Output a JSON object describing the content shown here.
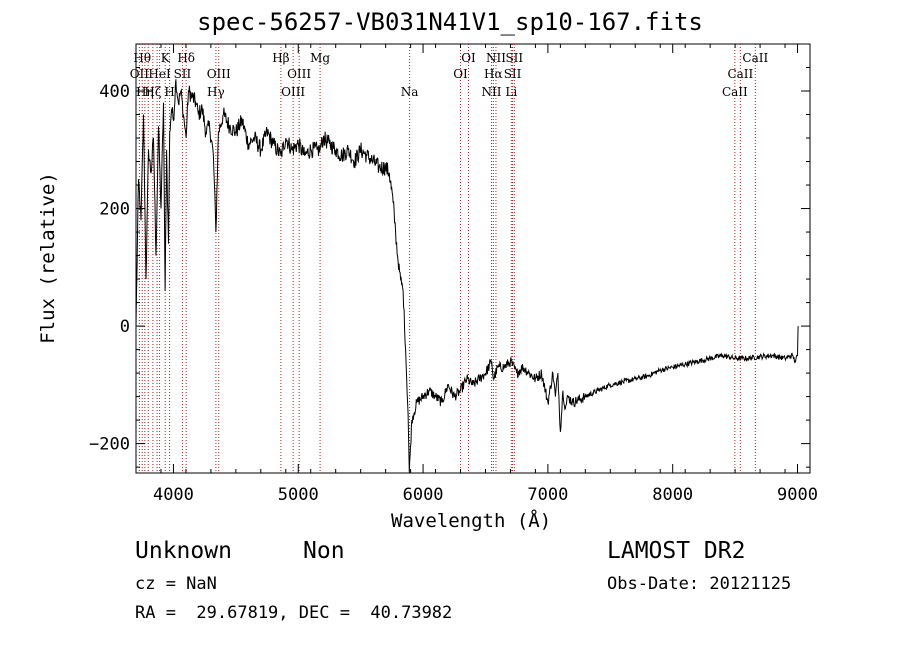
{
  "title": "spec-56257-VB031N41V1_sp10-167.fits",
  "footer": {
    "object_class": "Unknown",
    "subclass": "Non",
    "redshift": "cz = NaN",
    "coords": "RA =  29.67819, DEC =  40.73982",
    "survey": "LAMOST DR2",
    "obs_date": "Obs-Date: 20121125"
  },
  "chart_data": {
    "type": "line",
    "title": "spec-56257-VB031N41V1_sp10-167.fits",
    "xlabel": "Wavelength (Å)",
    "ylabel": "Flux (relative)",
    "xlim": [
      3700,
      9100
    ],
    "ylim": [
      -250,
      480
    ],
    "xticks": [
      4000,
      5000,
      6000,
      7000,
      8000,
      9000
    ],
    "yticks": [
      -200,
      0,
      200,
      400
    ],
    "grid": false,
    "colors": {
      "spectrum": "#000000",
      "line_markers": "#b22222"
    },
    "series": [
      {
        "x": [
          3700,
          3720,
          3740,
          3760,
          3780,
          3800,
          3820,
          3840,
          3860,
          3880,
          3900,
          3920,
          3933,
          3945,
          3960,
          3970,
          3985,
          4000,
          4020,
          4040,
          4060,
          4080,
          4101,
          4120,
          4150,
          4180,
          4200,
          4230,
          4260,
          4290,
          4320,
          4340,
          4360,
          4400,
          4450,
          4500,
          4550,
          4600,
          4650,
          4700,
          4750,
          4800,
          4861,
          4900,
          4950,
          5000,
          5050,
          5100,
          5150,
          5175,
          5200,
          5250,
          5300,
          5350,
          5400,
          5450,
          5500,
          5550,
          5600,
          5650,
          5700,
          5730,
          5760,
          5780,
          5800,
          5820,
          5840,
          5860,
          5880,
          5890,
          5896,
          5910,
          5950,
          6000,
          6050,
          6100,
          6150,
          6200,
          6250,
          6300,
          6350,
          6400,
          6450,
          6500,
          6550,
          6563,
          6600,
          6650,
          6700,
          6750,
          6800,
          6850,
          6900,
          6950,
          7000,
          7040,
          7060,
          7080,
          7100,
          7120,
          7140,
          7160,
          7200,
          7300,
          7400,
          7500,
          7600,
          7700,
          7800,
          7900,
          8000,
          8100,
          8200,
          8300,
          8400,
          8500,
          8600,
          8700,
          8800,
          8900,
          8960,
          8980,
          9000,
          9005
        ],
        "y": [
          0,
          250,
          180,
          360,
          80,
          300,
          260,
          320,
          120,
          340,
          200,
          380,
          60,
          300,
          140,
          330,
          370,
          350,
          420,
          380,
          400,
          360,
          320,
          400,
          390,
          380,
          360,
          370,
          330,
          340,
          290,
          160,
          330,
          360,
          340,
          330,
          350,
          310,
          320,
          300,
          330,
          310,
          290,
          320,
          300,
          310,
          290,
          300,
          300,
          300,
          320,
          310,
          300,
          290,
          300,
          280,
          300,
          290,
          280,
          270,
          270,
          260,
          210,
          160,
          110,
          80,
          60,
          -40,
          -150,
          -250,
          -220,
          -160,
          -130,
          -120,
          -110,
          -120,
          -130,
          -100,
          -120,
          -110,
          -90,
          -100,
          -90,
          -80,
          -60,
          -90,
          -70,
          -70,
          -60,
          -80,
          -70,
          -80,
          -90,
          -80,
          -130,
          -80,
          -120,
          -80,
          -180,
          -110,
          -140,
          -120,
          -130,
          -120,
          -110,
          -100,
          -95,
          -90,
          -85,
          -75,
          -70,
          -65,
          -60,
          -55,
          -50,
          -55,
          -55,
          -52,
          -50,
          -55,
          -50,
          -60,
          -50,
          0
        ]
      }
    ],
    "line_markers": [
      {
        "x": 3727,
        "label": "OII",
        "row": 2
      },
      {
        "x": 3750,
        "label": "Hθ",
        "row": 1
      },
      {
        "x": 3771,
        "label": "Hη",
        "row": 3
      },
      {
        "x": 3798,
        "label": "",
        "row": 0
      },
      {
        "x": 3835,
        "label": "Hζ",
        "row": 3
      },
      {
        "x": 3869,
        "label": "",
        "row": 0
      },
      {
        "x": 3889,
        "label": "HeI",
        "row": 2
      },
      {
        "x": 3934,
        "label": "K",
        "row": 1
      },
      {
        "x": 3969,
        "label": "H",
        "row": 3
      },
      {
        "x": 4072,
        "label": "SII",
        "row": 2
      },
      {
        "x": 4102,
        "label": "Hδ",
        "row": 1
      },
      {
        "x": 4340,
        "label": "Hγ",
        "row": 3
      },
      {
        "x": 4363,
        "label": "OIII",
        "row": 2
      },
      {
        "x": 4861,
        "label": "Hβ",
        "row": 1
      },
      {
        "x": 4959,
        "label": "OIII",
        "row": 3
      },
      {
        "x": 5007,
        "label": "OIII",
        "row": 2
      },
      {
        "x": 5175,
        "label": "Mg",
        "row": 1
      },
      {
        "x": 5892,
        "label": "Na",
        "row": 3
      },
      {
        "x": 6300,
        "label": "OI",
        "row": 2
      },
      {
        "x": 6364,
        "label": "OI",
        "row": 1
      },
      {
        "x": 6548,
        "label": "NII",
        "row": 3
      },
      {
        "x": 6563,
        "label": "Hα",
        "row": 2
      },
      {
        "x": 6584,
        "label": "NII",
        "row": 1
      },
      {
        "x": 6707,
        "label": "Li",
        "row": 3
      },
      {
        "x": 6717,
        "label": "SII",
        "row": 2
      },
      {
        "x": 6731,
        "label": "SII",
        "row": 1
      },
      {
        "x": 8498,
        "label": "CaII",
        "row": 3
      },
      {
        "x": 8542,
        "label": "CaII",
        "row": 2
      },
      {
        "x": 8662,
        "label": "CaII",
        "row": 1
      }
    ]
  }
}
